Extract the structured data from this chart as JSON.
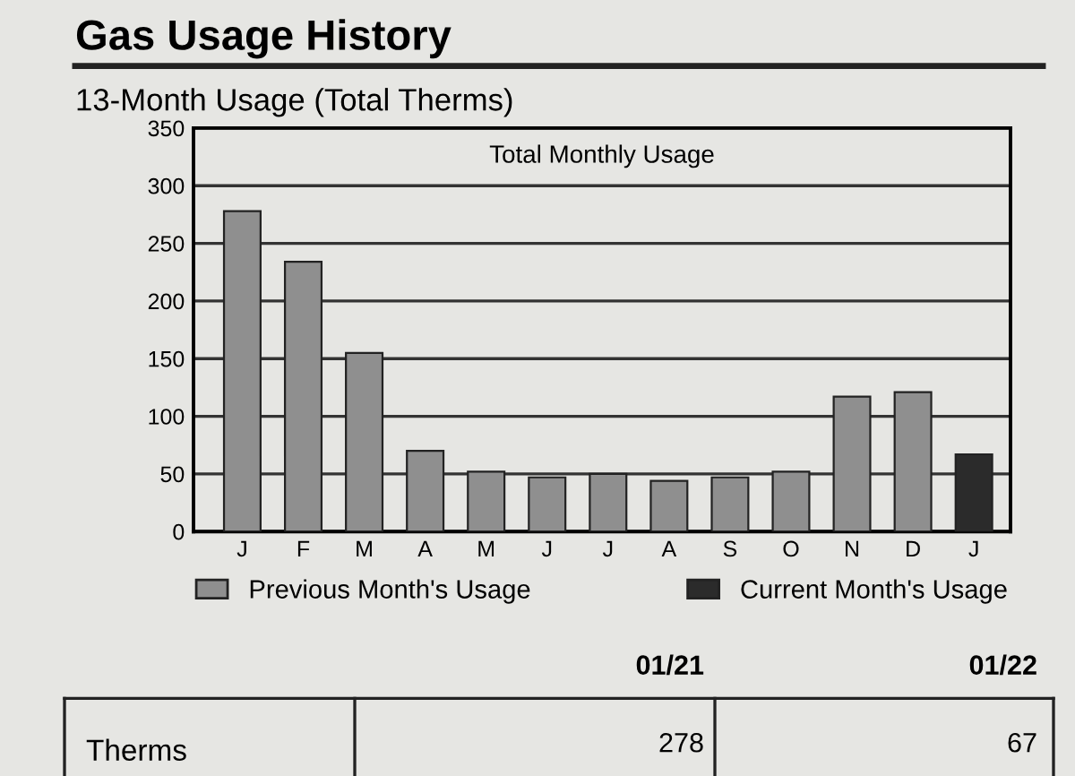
{
  "chart_data": {
    "type": "bar",
    "title": "Gas Usage History",
    "subtitle": "13-Month Usage (Total Therms)",
    "categories": [
      "J",
      "F",
      "M",
      "A",
      "M",
      "J",
      "J",
      "A",
      "S",
      "O",
      "N",
      "D",
      "J"
    ],
    "series": [
      {
        "name": "Previous Month's Usage",
        "color": "#8f8f8f",
        "values": [
          278,
          234,
          155,
          70,
          52,
          47,
          50,
          44,
          47,
          52,
          117,
          121,
          null
        ]
      },
      {
        "name": "Current Month's Usage",
        "color": "#2b2b2b",
        "values": [
          null,
          null,
          null,
          null,
          null,
          null,
          null,
          null,
          null,
          null,
          null,
          null,
          67
        ]
      }
    ],
    "ylim": [
      0,
      350
    ],
    "yticks": [
      0,
      50,
      100,
      150,
      200,
      250,
      300,
      350
    ],
    "grid": "y",
    "legend": "bottom",
    "annotations": [
      "Total Monthly Usage",
      "01/21",
      "01/22",
      "Therms",
      "278",
      "67"
    ]
  }
}
